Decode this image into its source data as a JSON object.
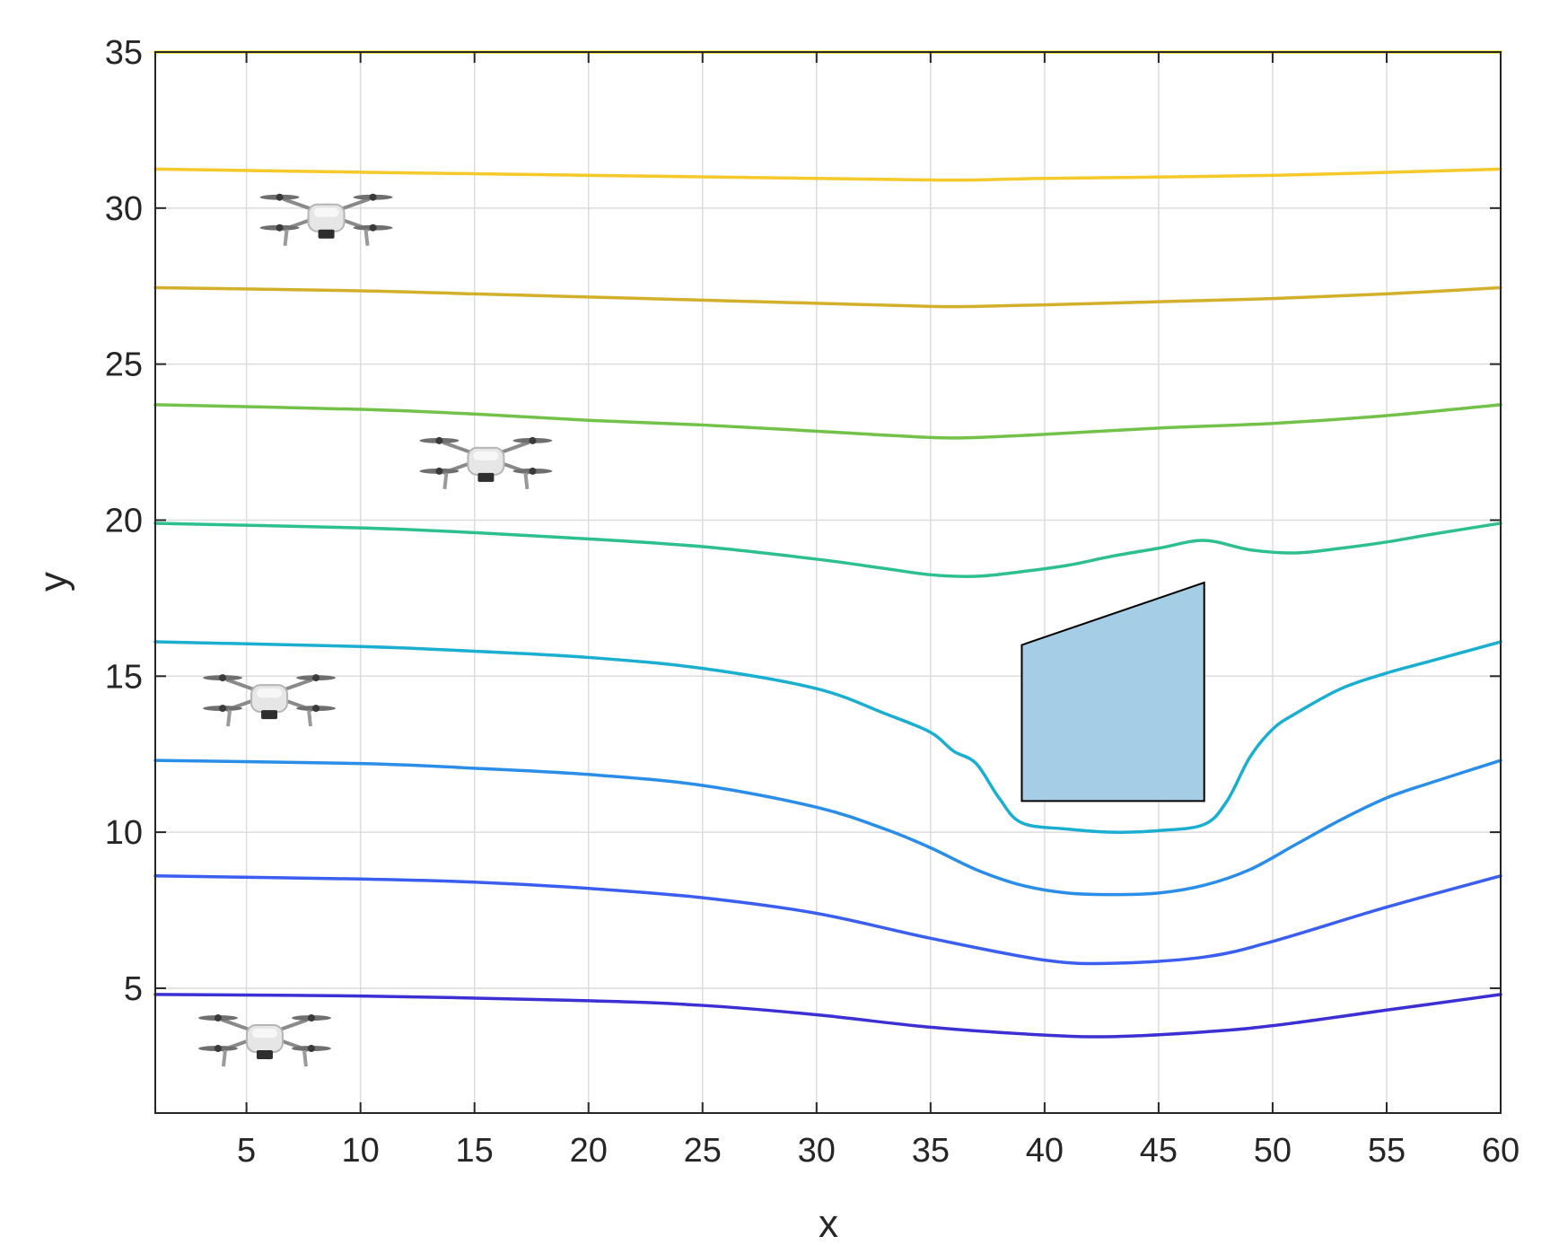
{
  "chart_data": {
    "type": "line",
    "title": "",
    "xlabel": "x",
    "ylabel": "y",
    "xlim": [
      1,
      60
    ],
    "ylim": [
      1,
      35
    ],
    "xticks": [
      5,
      10,
      15,
      20,
      25,
      30,
      35,
      40,
      45,
      50,
      55,
      60
    ],
    "yticks": [
      5,
      10,
      15,
      20,
      25,
      30,
      35
    ],
    "grid": true,
    "series": [
      {
        "color": "#3c2fd4",
        "points": [
          [
            1,
            4.8
          ],
          [
            10,
            4.75
          ],
          [
            20,
            4.6
          ],
          [
            25,
            4.45
          ],
          [
            30,
            4.15
          ],
          [
            35,
            3.75
          ],
          [
            40,
            3.5
          ],
          [
            43,
            3.45
          ],
          [
            47,
            3.6
          ],
          [
            50,
            3.8
          ],
          [
            55,
            4.3
          ],
          [
            60,
            4.8
          ]
        ]
      },
      {
        "color": "#3a5ff0",
        "points": [
          [
            1,
            8.6
          ],
          [
            10,
            8.5
          ],
          [
            15,
            8.4
          ],
          [
            20,
            8.2
          ],
          [
            25,
            7.9
          ],
          [
            30,
            7.4
          ],
          [
            35,
            6.6
          ],
          [
            40,
            5.9
          ],
          [
            43,
            5.8
          ],
          [
            47,
            6.0
          ],
          [
            50,
            6.5
          ],
          [
            55,
            7.6
          ],
          [
            60,
            8.6
          ]
        ]
      },
      {
        "color": "#2a8ee8",
        "points": [
          [
            1,
            12.3
          ],
          [
            10,
            12.2
          ],
          [
            15,
            12.05
          ],
          [
            20,
            11.85
          ],
          [
            25,
            11.5
          ],
          [
            30,
            10.8
          ],
          [
            33,
            10.1
          ],
          [
            35,
            9.5
          ],
          [
            37,
            8.8
          ],
          [
            39,
            8.3
          ],
          [
            41,
            8.05
          ],
          [
            43,
            8.0
          ],
          [
            45,
            8.05
          ],
          [
            47,
            8.3
          ],
          [
            49,
            8.8
          ],
          [
            51,
            9.6
          ],
          [
            53,
            10.4
          ],
          [
            55,
            11.1
          ],
          [
            57,
            11.6
          ],
          [
            60,
            12.3
          ]
        ]
      },
      {
        "color": "#1aaed0",
        "points": [
          [
            1,
            16.1
          ],
          [
            10,
            15.95
          ],
          [
            15,
            15.8
          ],
          [
            20,
            15.6
          ],
          [
            25,
            15.25
          ],
          [
            30,
            14.6
          ],
          [
            33,
            13.8
          ],
          [
            35,
            13.2
          ],
          [
            36,
            12.6
          ],
          [
            37,
            12.2
          ],
          [
            38,
            11.1
          ],
          [
            39,
            10.3
          ],
          [
            41,
            10.1
          ],
          [
            43,
            10.0
          ],
          [
            45,
            10.05
          ],
          [
            47,
            10.25
          ],
          [
            48,
            11.0
          ],
          [
            49,
            12.4
          ],
          [
            50,
            13.3
          ],
          [
            51,
            13.8
          ],
          [
            53,
            14.6
          ],
          [
            55,
            15.1
          ],
          [
            57,
            15.5
          ],
          [
            60,
            16.1
          ]
        ]
      },
      {
        "color": "#2ec08c",
        "points": [
          [
            1,
            19.9
          ],
          [
            10,
            19.75
          ],
          [
            15,
            19.6
          ],
          [
            20,
            19.4
          ],
          [
            25,
            19.15
          ],
          [
            30,
            18.75
          ],
          [
            33,
            18.45
          ],
          [
            35,
            18.25
          ],
          [
            37,
            18.2
          ],
          [
            39,
            18.35
          ],
          [
            41,
            18.55
          ],
          [
            43,
            18.85
          ],
          [
            45,
            19.1
          ],
          [
            47,
            19.35
          ],
          [
            49,
            19.05
          ],
          [
            51,
            18.95
          ],
          [
            53,
            19.1
          ],
          [
            55,
            19.3
          ],
          [
            57,
            19.55
          ],
          [
            60,
            19.9
          ]
        ]
      },
      {
        "color": "#72c24a",
        "points": [
          [
            1,
            23.7
          ],
          [
            10,
            23.55
          ],
          [
            15,
            23.4
          ],
          [
            20,
            23.2
          ],
          [
            25,
            23.05
          ],
          [
            30,
            22.85
          ],
          [
            35,
            22.65
          ],
          [
            37,
            22.65
          ],
          [
            40,
            22.75
          ],
          [
            45,
            22.95
          ],
          [
            50,
            23.1
          ],
          [
            55,
            23.35
          ],
          [
            60,
            23.7
          ]
        ]
      },
      {
        "color": "#d4b02a",
        "points": [
          [
            1,
            27.45
          ],
          [
            10,
            27.35
          ],
          [
            15,
            27.25
          ],
          [
            20,
            27.15
          ],
          [
            25,
            27.05
          ],
          [
            30,
            26.95
          ],
          [
            35,
            26.85
          ],
          [
            37,
            26.85
          ],
          [
            40,
            26.9
          ],
          [
            45,
            27.0
          ],
          [
            50,
            27.1
          ],
          [
            55,
            27.25
          ],
          [
            60,
            27.45
          ]
        ]
      },
      {
        "color": "#f5c92a",
        "points": [
          [
            1,
            31.25
          ],
          [
            10,
            31.15
          ],
          [
            20,
            31.05
          ],
          [
            30,
            30.95
          ],
          [
            35,
            30.9
          ],
          [
            37,
            30.9
          ],
          [
            40,
            30.95
          ],
          [
            50,
            31.05
          ],
          [
            60,
            31.25
          ]
        ]
      },
      {
        "color": "#f0e01a",
        "points": [
          [
            1,
            35
          ],
          [
            60,
            35
          ]
        ]
      }
    ],
    "obstacle": {
      "fill": "#a6cde6",
      "points": [
        [
          39,
          11
        ],
        [
          47,
          11
        ],
        [
          47,
          18
        ],
        [
          39,
          16
        ]
      ]
    },
    "drones": [
      {
        "icon": "drone-icon",
        "x": 8.5,
        "y": 29.6
      },
      {
        "icon": "drone-icon",
        "x": 15.5,
        "y": 21.8
      },
      {
        "icon": "drone-icon",
        "x": 6,
        "y": 14.2
      },
      {
        "icon": "drone-icon",
        "x": 5.8,
        "y": 3.3
      }
    ]
  }
}
